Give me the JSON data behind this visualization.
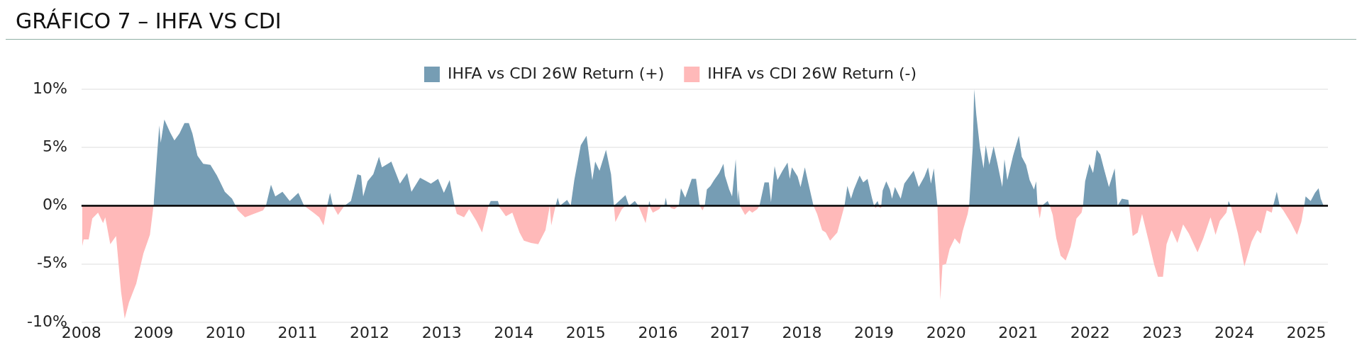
{
  "chart_data": {
    "type": "area",
    "title": "GRÁFICO 7 – IHFA VS CDI",
    "legend": "top",
    "grid": "y",
    "xlim": [
      2008,
      2025.3
    ],
    "xticks": [
      2008,
      2009,
      2010,
      2011,
      2012,
      2013,
      2014,
      2015,
      2016,
      2017,
      2018,
      2019,
      2020,
      2021,
      2022,
      2023,
      2024,
      2025
    ],
    "ylim": [
      -10,
      10
    ],
    "yticks": [
      {
        "value": -10,
        "label": "-10%"
      },
      {
        "value": -5,
        "label": "-5%"
      },
      {
        "value": 0,
        "label": "0%"
      },
      {
        "value": 5,
        "label": "5%"
      },
      {
        "value": 10,
        "label": "10%"
      }
    ],
    "ref_lines": [
      {
        "axis": "y",
        "value": 0,
        "color": "#000000"
      }
    ],
    "series": [
      {
        "name": "IHFA vs CDI 26W Return (+)",
        "color": "#769db4",
        "x": [
          2009.0,
          2009.05,
          2009.08,
          2009.1,
          2009.15,
          2009.23,
          2009.29,
          2009.36,
          2009.43,
          2009.49,
          2009.54,
          2009.61,
          2009.69,
          2009.79,
          2009.88,
          2009.99,
          2010.09,
          2010.14,
          2010.56,
          2010.63,
          2010.69,
          2010.79,
          2010.89,
          2011.01,
          2011.09,
          2011.41,
          2011.45,
          2011.49,
          2011.65,
          2011.74,
          2011.83,
          2011.88,
          2011.91,
          2011.97,
          2012.05,
          2012.13,
          2012.17,
          2012.28,
          2012.3,
          2012.42,
          2012.52,
          2012.58,
          2012.7,
          2012.85,
          2012.95,
          2013.03,
          2013.11,
          2013.18,
          2013.65,
          2013.68,
          2013.78,
          2013.8,
          2014.5,
          2014.58,
          2014.61,
          2014.64,
          2014.74,
          2014.79,
          2014.84,
          2014.93,
          2015.01,
          2015.09,
          2015.13,
          2015.19,
          2015.28,
          2015.35,
          2015.39,
          2015.55,
          2015.6,
          2015.68,
          2015.73,
          2015.87,
          2015.88,
          2015.9,
          2016.09,
          2016.11,
          2016.13,
          2016.29,
          2016.32,
          2016.38,
          2016.47,
          2016.53,
          2016.58,
          2016.65,
          2016.68,
          2016.73,
          2016.78,
          2016.85,
          2016.91,
          2016.93,
          2016.99,
          2017.03,
          2017.08,
          2017.11,
          2017.12,
          2017.14,
          2017.41,
          2017.48,
          2017.54,
          2017.57,
          2017.62,
          2017.66,
          2017.73,
          2017.8,
          2017.83,
          2017.86,
          2017.94,
          2017.98,
          2018.04,
          2018.09,
          2018.16,
          2018.59,
          2018.63,
          2018.68,
          2018.72,
          2018.8,
          2018.85,
          2018.91,
          2018.97,
          2019.0,
          2019.05,
          2019.07,
          2019.1,
          2019.12,
          2019.17,
          2019.22,
          2019.25,
          2019.29,
          2019.37,
          2019.42,
          2019.55,
          2019.62,
          2019.7,
          2019.75,
          2019.79,
          2019.83,
          2019.88,
          2020.32,
          2020.37,
          2020.39,
          2020.42,
          2020.47,
          2020.52,
          2020.55,
          2020.6,
          2020.66,
          2020.71,
          2020.78,
          2020.81,
          2020.85,
          2020.93,
          2021.01,
          2021.05,
          2021.11,
          2021.16,
          2021.22,
          2021.25,
          2021.27,
          2021.33,
          2021.41,
          2021.44,
          2021.9,
          2021.93,
          2021.99,
          2022.04,
          2022.09,
          2022.14,
          2022.19,
          2022.26,
          2022.34,
          2022.38,
          2022.44,
          2022.53,
          2022.54,
          2023.91,
          2023.92,
          2023.95,
          2024.54,
          2024.59,
          2024.63,
          2024.97,
          2024.99,
          2025.06,
          2025.12,
          2025.17,
          2025.2,
          2025.24
        ],
        "values": [
          0,
          4.4,
          6.9,
          5.4,
          7.4,
          6.3,
          5.6,
          6.2,
          7.1,
          7.1,
          6.2,
          4.3,
          3.6,
          3.5,
          2.6,
          1.2,
          0.6,
          0,
          0,
          1.8,
          0.8,
          1.2,
          0.4,
          1.1,
          0,
          0,
          1.1,
          0,
          0,
          0.4,
          2.7,
          2.6,
          0.8,
          2.1,
          2.7,
          4.2,
          3.3,
          3.7,
          3.8,
          1.9,
          2.8,
          1.2,
          2.4,
          1.9,
          2.3,
          1.1,
          2.2,
          0,
          0,
          0.4,
          0.4,
          0,
          0,
          0,
          0.7,
          0,
          0.5,
          0,
          2.2,
          5.2,
          6.0,
          2.2,
          3.8,
          3.0,
          4.8,
          2.7,
          0,
          0.9,
          0,
          0.4,
          0,
          0,
          0.4,
          0,
          0,
          0.7,
          0,
          0,
          1.5,
          0.7,
          2.3,
          2.3,
          0,
          0,
          1.4,
          1.7,
          2.2,
          2.8,
          3.6,
          2.6,
          1.4,
          0.8,
          4.0,
          0.3,
          1.4,
          0,
          0,
          2.0,
          2.0,
          0.3,
          3.4,
          2.2,
          3.0,
          3.7,
          2.3,
          3.3,
          2.5,
          1.6,
          3.3,
          1.9,
          0,
          0,
          1.7,
          0.6,
          1.4,
          2.6,
          2.0,
          2.3,
          0.7,
          0,
          0.4,
          0,
          0,
          1.3,
          2.1,
          1.4,
          0.6,
          1.6,
          0.6,
          1.9,
          3.0,
          1.6,
          2.5,
          3.3,
          1.9,
          3.2,
          0,
          0,
          5.0,
          10.0,
          7.8,
          5.0,
          3.2,
          5.2,
          3.5,
          5.1,
          3.7,
          1.6,
          4.0,
          2.2,
          4.3,
          6.0,
          4.2,
          3.5,
          2.2,
          1.4,
          2.1,
          0,
          0,
          0.4,
          0,
          0,
          2.1,
          3.6,
          2.8,
          4.8,
          4.4,
          3.2,
          1.6,
          3.2,
          0,
          0.6,
          0.5,
          0,
          0,
          0.4,
          0,
          0,
          1.2,
          0,
          0,
          0.8,
          0.4,
          1.1,
          1.5,
          0.6,
          0
        ]
      },
      {
        "name": "IHFA vs CDI 26W Return (-)",
        "color": "#ffb9b9",
        "x": [
          2008.01,
          2008.03,
          2008.1,
          2008.15,
          2008.23,
          2008.3,
          2008.33,
          2008.4,
          2008.48,
          2008.55,
          2008.6,
          2008.66,
          2008.76,
          2008.86,
          2008.95,
          2009.0,
          2010.14,
          2010.17,
          2010.27,
          2010.39,
          2010.52,
          2010.56,
          2011.09,
          2011.22,
          2011.3,
          2011.36,
          2011.41,
          2011.49,
          2011.56,
          2011.65,
          2013.18,
          2013.21,
          2013.31,
          2013.38,
          2013.48,
          2013.56,
          2013.65,
          2013.78,
          2013.81,
          2013.89,
          2013.98,
          2014.08,
          2014.14,
          2014.24,
          2014.34,
          2014.44,
          2014.5,
          2014.52,
          2014.58,
          2015.39,
          2015.41,
          2015.5,
          2015.55,
          2015.73,
          2015.83,
          2015.87,
          2015.88,
          2015.93,
          2016.02,
          2016.05,
          2016.11,
          2016.16,
          2016.18,
          2016.23,
          2016.29,
          2016.58,
          2016.62,
          2016.65,
          2017.14,
          2017.21,
          2017.27,
          2017.31,
          2017.38,
          2017.41,
          2018.16,
          2018.21,
          2018.28,
          2018.33,
          2018.39,
          2018.49,
          2018.56,
          2018.59,
          2019.0,
          2019.02,
          2019.05,
          2019.09,
          2019.12,
          2019.88,
          2019.92,
          2019.95,
          2020.0,
          2020.05,
          2020.12,
          2020.19,
          2020.23,
          2020.3,
          2020.32,
          2021.27,
          2021.3,
          2021.33,
          2021.44,
          2021.48,
          2021.53,
          2021.59,
          2021.66,
          2021.73,
          2021.81,
          2021.88,
          2021.9,
          2022.54,
          2022.59,
          2022.66,
          2022.72,
          2022.81,
          2022.89,
          2022.94,
          2023.01,
          2023.06,
          2023.13,
          2023.21,
          2023.29,
          2023.37,
          2023.49,
          2023.57,
          2023.67,
          2023.74,
          2023.8,
          2023.89,
          2023.91,
          2023.95,
          2023.97,
          2024.05,
          2024.14,
          2024.24,
          2024.32,
          2024.37,
          2024.45,
          2024.52,
          2024.54,
          2024.63,
          2024.68,
          2024.78,
          2024.87,
          2024.93,
          2024.97
        ],
        "values": [
          -3.5,
          -2.9,
          -2.9,
          -1.1,
          -0.6,
          -1.5,
          -1.0,
          -3.3,
          -2.6,
          -7.4,
          -9.7,
          -8.3,
          -6.7,
          -4.1,
          -2.5,
          0,
          0,
          -0.4,
          -1.0,
          -0.7,
          -0.4,
          0,
          0,
          -0.6,
          -1.0,
          -1.7,
          0,
          0,
          -0.8,
          0,
          0,
          -0.7,
          -1.0,
          -0.3,
          -1.3,
          -2.3,
          0,
          0,
          -0.2,
          -0.9,
          -0.6,
          -2.3,
          -3.0,
          -3.2,
          -3.3,
          -2.1,
          0,
          -1.7,
          0,
          0,
          -1.4,
          -0.3,
          0,
          0,
          -1.5,
          0,
          0,
          -0.6,
          -0.3,
          0,
          0,
          0,
          -0.2,
          -0.3,
          0,
          0,
          -0.4,
          0,
          0,
          -0.8,
          -0.4,
          -0.6,
          -0.3,
          0,
          0,
          -0.7,
          -2.1,
          -2.3,
          -3.0,
          -2.3,
          -0.7,
          0,
          0,
          -0.2,
          0,
          -0.2,
          0,
          0,
          -8.1,
          -5.1,
          -5.0,
          -3.7,
          -2.8,
          -3.3,
          -2.2,
          -0.7,
          0,
          0,
          -1.1,
          0,
          0,
          -0.8,
          -2.8,
          -4.3,
          -4.7,
          -3.5,
          -1.1,
          -0.6,
          0,
          0,
          -2.6,
          -2.3,
          -0.7,
          -3.0,
          -5.1,
          -6.1,
          -6.1,
          -3.3,
          -2.1,
          -3.2,
          -1.6,
          -2.4,
          -4.0,
          -2.8,
          -1.0,
          -2.5,
          -1.3,
          -0.6,
          0,
          0,
          -0.4,
          -2.4,
          -5.2,
          -3.1,
          -2.1,
          -2.4,
          -0.4,
          -0.6,
          0,
          0,
          -0.4,
          -1.4,
          -2.5,
          -1.4,
          0
        ]
      }
    ]
  }
}
